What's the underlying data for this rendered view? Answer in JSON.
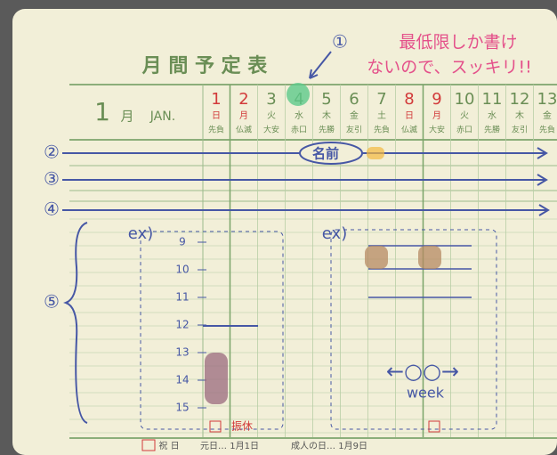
{
  "header": {
    "title": "月 間 予 定 表",
    "month_number": "1",
    "month_kanji": "月",
    "month_en": "JAN."
  },
  "days": [
    {
      "day": 1,
      "weekday": "日",
      "rokuyo": "先負",
      "holiday": true
    },
    {
      "day": 2,
      "weekday": "月",
      "rokuyo": "仏滅",
      "holiday": true
    },
    {
      "day": 3,
      "weekday": "火",
      "rokuyo": "大安",
      "holiday": false
    },
    {
      "day": 4,
      "weekday": "水",
      "rokuyo": "赤口",
      "holiday": false
    },
    {
      "day": 5,
      "weekday": "木",
      "rokuyo": "先勝",
      "holiday": false
    },
    {
      "day": 6,
      "weekday": "金",
      "rokuyo": "友引",
      "holiday": false
    },
    {
      "day": 7,
      "weekday": "土",
      "rokuyo": "先負",
      "holiday": false
    },
    {
      "day": 8,
      "weekday": "日",
      "rokuyo": "仏滅",
      "holiday": true
    },
    {
      "day": 9,
      "weekday": "月",
      "rokuyo": "大安",
      "holiday": true
    },
    {
      "day": 10,
      "weekday": "火",
      "rokuyo": "赤口",
      "holiday": false
    },
    {
      "day": 11,
      "weekday": "水",
      "rokuyo": "先勝",
      "holiday": false
    },
    {
      "day": 12,
      "weekday": "木",
      "rokuyo": "友引",
      "holiday": false
    },
    {
      "day": 13,
      "weekday": "金",
      "rokuyo": "先負",
      "holiday": false
    }
  ],
  "annotations": {
    "marker_1": "①",
    "note_line1": "最低限しか書け",
    "note_line2": "ないので、スッキリ!!",
    "marker_2": "②",
    "marker_3": "③",
    "marker_4": "④",
    "marker_5": "⑤",
    "name": "名前",
    "example_left": "ex)",
    "example_right": "ex)",
    "hours": [
      9,
      10,
      11,
      12,
      13,
      14,
      15
    ],
    "substitute_holiday": "振休",
    "week_range": "←○○→",
    "week": "week"
  },
  "footer": {
    "holidays_label": "祝 日",
    "holiday_1": "元日… 1月1日",
    "holiday_2": "成人の日… 1月9日"
  }
}
